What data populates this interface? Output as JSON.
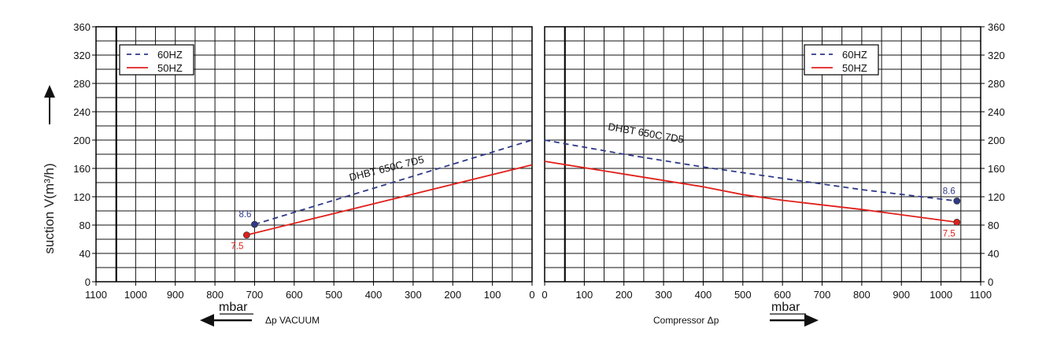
{
  "colors": {
    "s60": "#2e3a87",
    "s50": "#e0201b",
    "grid": "#111111",
    "frame": "#000000"
  },
  "y_axis": {
    "label": "suction V(m³/h)",
    "ticks": [
      0,
      40,
      80,
      120,
      160,
      200,
      240,
      280,
      320,
      360
    ]
  },
  "chart_data": [
    {
      "type": "line",
      "panel": "vacuum",
      "title": "",
      "xlabel": "Δp VACUUM",
      "unit": "mbar",
      "ylabel": "suction V(m³/h)",
      "xlim": [
        1100,
        0
      ],
      "ylim": [
        0,
        360
      ],
      "x_ticks": [
        1100,
        1000,
        900,
        800,
        700,
        600,
        500,
        400,
        300,
        200,
        100,
        0
      ],
      "grid": true,
      "legend_position": "top-left",
      "curve_label": "DHBT 650C 7D5",
      "series": [
        {
          "name": "60HZ",
          "style": "dashed",
          "color": "#2e3a87",
          "x": [
            700,
            0
          ],
          "y": [
            81,
            200
          ],
          "end_label": "8.6"
        },
        {
          "name": "50HZ",
          "style": "solid",
          "color": "#e0201b",
          "x": [
            720,
            0
          ],
          "y": [
            66,
            165
          ],
          "end_label": "7.5"
        }
      ]
    },
    {
      "type": "line",
      "panel": "compressor",
      "title": "",
      "xlabel": "Compressor Δp",
      "unit": "mbar",
      "ylabel": "suction V(m³/h)",
      "xlim": [
        0,
        1100
      ],
      "ylim": [
        0,
        360
      ],
      "x_ticks": [
        0,
        100,
        200,
        300,
        400,
        500,
        600,
        700,
        800,
        900,
        1000,
        1100
      ],
      "grid": true,
      "legend_position": "top-right",
      "curve_label": "DHBT 650C 7D5",
      "series": [
        {
          "name": "60HZ",
          "style": "dashed",
          "color": "#2e3a87",
          "x": [
            0,
            200,
            400,
            600,
            800,
            1040
          ],
          "y": [
            200,
            180,
            162,
            146,
            130,
            114
          ],
          "end_label": "8.6"
        },
        {
          "name": "50HZ",
          "style": "solid",
          "color": "#e0201b",
          "x": [
            0,
            200,
            400,
            500,
            600,
            800,
            1040
          ],
          "y": [
            170,
            152,
            134,
            123,
            115,
            102,
            84
          ],
          "end_label": "7.5"
        }
      ]
    }
  ]
}
